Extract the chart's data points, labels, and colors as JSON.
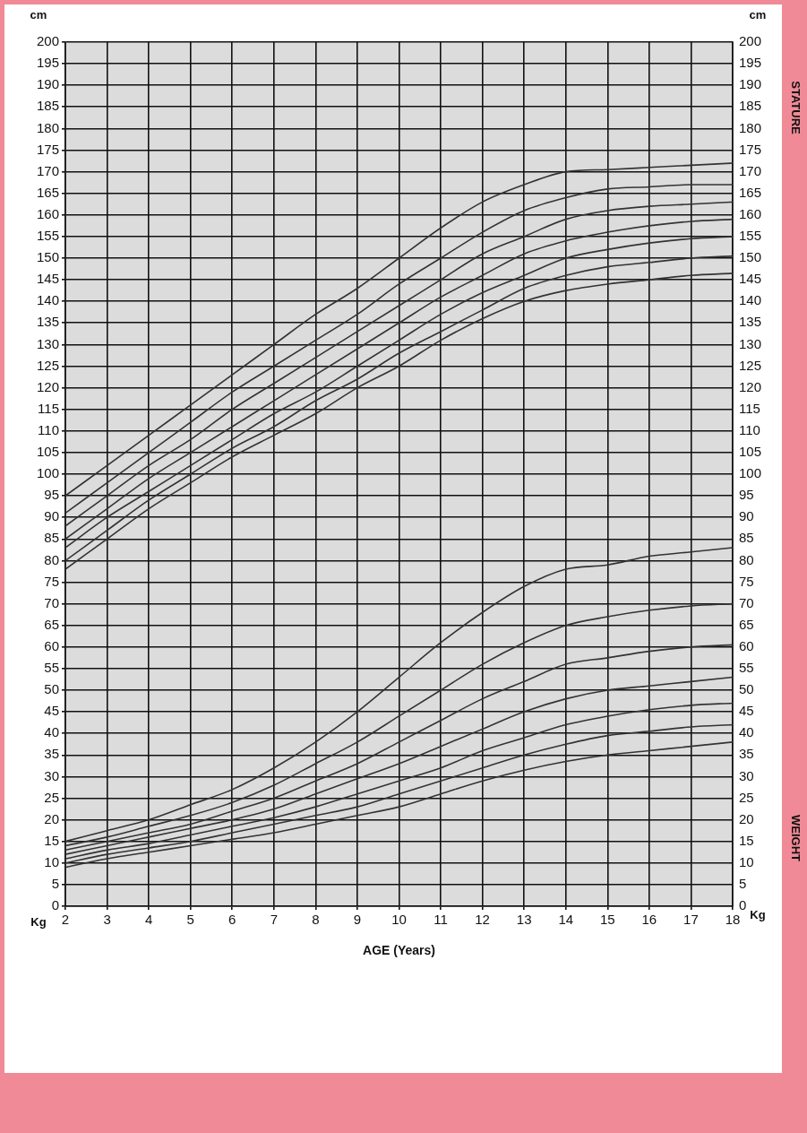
{
  "chart_data": {
    "type": "line",
    "xlabel": "AGE (Years)",
    "ylabel": "cm",
    "y2label": "cm",
    "annotations": [
      "Kg",
      "STATURE",
      "WEIGHT"
    ],
    "x": [
      2,
      3,
      4,
      5,
      6,
      7,
      8,
      9,
      10,
      11,
      12,
      13,
      14,
      15,
      16,
      17,
      18
    ],
    "xlim": [
      2,
      18
    ],
    "xticks": [
      2,
      3,
      4,
      5,
      6,
      7,
      8,
      9,
      10,
      11,
      12,
      13,
      14,
      15,
      16,
      17,
      18
    ],
    "ylim": [
      0,
      200
    ],
    "yticks": [
      0,
      5,
      10,
      15,
      20,
      25,
      30,
      35,
      40,
      45,
      50,
      55,
      60,
      65,
      70,
      75,
      80,
      85,
      90,
      95,
      100,
      105,
      110,
      115,
      120,
      125,
      130,
      135,
      140,
      145,
      150,
      155,
      160,
      165,
      170,
      175,
      180,
      185,
      190,
      195,
      200
    ],
    "y2lim": [
      0,
      200
    ],
    "y2ticks": [
      0,
      5,
      10,
      15,
      20,
      25,
      30,
      35,
      40,
      45,
      50,
      55,
      60,
      65,
      70,
      75,
      80,
      85,
      90,
      95,
      100,
      105,
      110,
      115,
      120,
      125,
      130,
      135,
      140,
      145,
      150,
      155,
      160,
      165,
      170,
      175,
      180,
      185,
      190,
      195,
      200
    ],
    "grid": true,
    "legend": false,
    "marker": "none",
    "line_style": "solid",
    "series": [
      {
        "color": "#333333",
        "values": [
          95,
          102,
          109,
          116,
          123,
          130,
          137,
          143,
          150,
          157,
          163,
          167,
          170,
          170.5,
          171,
          171.5,
          172
        ]
      },
      {
        "color": "#333333",
        "values": [
          91,
          98,
          105,
          112,
          119,
          125,
          131,
          137,
          144,
          150,
          156,
          161,
          164,
          166,
          166.5,
          167,
          167
        ]
      },
      {
        "color": "#333333",
        "values": [
          88,
          95,
          102,
          108,
          115,
          121,
          127,
          133,
          139,
          145,
          151,
          155,
          159,
          161,
          162,
          162.5,
          163
        ]
      },
      {
        "color": "#333333",
        "values": [
          85,
          92,
          99,
          105,
          111,
          117,
          123,
          129,
          135,
          141,
          146,
          151,
          154,
          156,
          157.5,
          158.5,
          159
        ]
      },
      {
        "color": "#333333",
        "values": [
          83,
          90,
          96,
          102,
          108,
          114,
          119,
          125,
          131,
          137,
          142,
          146,
          150,
          152,
          153.5,
          154.5,
          155
        ]
      },
      {
        "color": "#333333",
        "values": [
          80,
          87,
          94,
          100,
          106,
          111,
          117,
          122,
          128,
          133,
          138,
          143,
          146,
          148,
          149,
          150,
          150.5
        ]
      },
      {
        "color": "#333333",
        "values": [
          78,
          85,
          92,
          98,
          104,
          109,
          114,
          120,
          125,
          131,
          136,
          140,
          142.5,
          144,
          145,
          146,
          146.5
        ]
      },
      {
        "color": "#333333",
        "values": [
          15,
          17.5,
          20,
          23.5,
          27,
          32,
          38,
          45,
          53,
          61,
          68,
          74,
          78,
          79,
          81,
          82,
          83
        ]
      },
      {
        "color": "#333333",
        "values": [
          14,
          16,
          18.5,
          21,
          24,
          28,
          33,
          38,
          44,
          50,
          56,
          61,
          65,
          67,
          68.5,
          69.5,
          70
        ]
      },
      {
        "color": "#333333",
        "values": [
          13,
          15,
          17,
          19,
          22,
          25,
          29,
          33,
          38,
          43,
          48,
          52,
          56,
          57.5,
          59,
          60,
          60.5
        ]
      },
      {
        "color": "#333333",
        "values": [
          12,
          14,
          16,
          18,
          20,
          22.5,
          26,
          29.5,
          33,
          37,
          41,
          45,
          48,
          50,
          51,
          52,
          53
        ]
      },
      {
        "color": "#333333",
        "values": [
          11,
          13,
          14.5,
          16.5,
          18.5,
          20.5,
          23,
          26,
          29,
          32,
          36,
          39,
          42,
          44,
          45.5,
          46.5,
          47
        ]
      },
      {
        "color": "#333333",
        "values": [
          10,
          12,
          13.5,
          15,
          17,
          19,
          21,
          23,
          26,
          29,
          32,
          35,
          37.5,
          39.5,
          40.5,
          41.5,
          42
        ]
      },
      {
        "color": "#333333",
        "values": [
          9,
          11,
          12.5,
          14,
          15.5,
          17,
          19,
          21,
          23,
          26,
          29,
          31.5,
          33.5,
          35,
          36,
          37,
          38
        ]
      }
    ]
  }
}
